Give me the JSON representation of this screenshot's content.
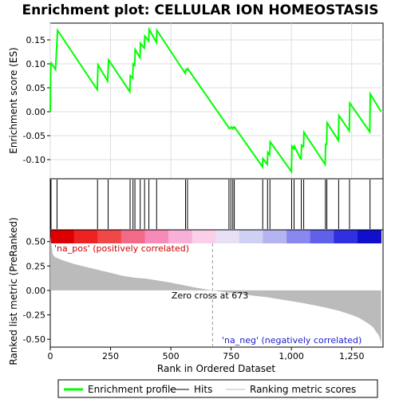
{
  "chart_data": {
    "type": "line",
    "title": "Enrichment plot: CELLULAR ION HOMEOSTASIS",
    "xlabel": "Rank in Ordered Dataset",
    "top_ylabel": "Enrichment score (ES)",
    "bottom_ylabel": "Ranked list metric (PreRanked)",
    "xlim": [
      0,
      1380
    ],
    "top_ylim": [
      -0.14,
      0.185
    ],
    "bottom_ylim": [
      -0.58,
      0.62
    ],
    "x_ticks": [
      0,
      250,
      500,
      750,
      1000,
      1250
    ],
    "x_tick_labels": [
      "0",
      "250",
      "500",
      "750",
      "1,000",
      "1,250"
    ],
    "top_y_ticks": [
      -0.1,
      -0.05,
      0.0,
      0.05,
      0.1,
      0.15
    ],
    "top_y_tick_labels": [
      "-0.10",
      "-0.05",
      "0.00",
      "0.05",
      "0.10",
      "0.15"
    ],
    "bottom_y_ticks": [
      -0.5,
      -0.25,
      0.0,
      0.25,
      0.5
    ],
    "bottom_y_tick_labels": [
      "-0.50",
      "-0.25",
      "0.00",
      "0.25",
      "0.50"
    ],
    "es_series": {
      "name": "Enrichment profile",
      "color": "#00ff00",
      "x": [
        0,
        2,
        4,
        22,
        30,
        195,
        198,
        238,
        242,
        330,
        332,
        342,
        344,
        350,
        352,
        372,
        374,
        390,
        392,
        408,
        410,
        440,
        442,
        560,
        562,
        568,
        570,
        740,
        742,
        748,
        750,
        756,
        758,
        762,
        764,
        880,
        882,
        900,
        902,
        910,
        912,
        1000,
        1002,
        1010,
        1012,
        1040,
        1042,
        1050,
        1052,
        1140,
        1142,
        1146,
        1148,
        1195,
        1197,
        1240,
        1242,
        1325,
        1327,
        1372
      ],
      "y": [
        0.0,
        0.1,
        0.102,
        0.088,
        0.17,
        0.046,
        0.098,
        0.064,
        0.108,
        0.042,
        0.075,
        0.07,
        0.1,
        0.097,
        0.13,
        0.113,
        0.143,
        0.133,
        0.158,
        0.148,
        0.172,
        0.145,
        0.17,
        0.08,
        0.088,
        0.087,
        0.09,
        -0.033,
        -0.035,
        -0.034,
        -0.032,
        -0.035,
        -0.033,
        -0.034,
        -0.032,
        -0.115,
        -0.098,
        -0.11,
        -0.085,
        -0.09,
        -0.063,
        -0.125,
        -0.072,
        -0.077,
        -0.072,
        -0.1,
        -0.07,
        -0.073,
        -0.043,
        -0.11,
        -0.068,
        -0.068,
        -0.023,
        -0.06,
        -0.008,
        -0.04,
        0.018,
        -0.042,
        0.037,
        0.0
      ]
    },
    "hits_x": [
      3,
      28,
      196,
      240,
      331,
      343,
      351,
      373,
      391,
      409,
      441,
      561,
      569,
      741,
      749,
      757,
      763,
      881,
      901,
      911,
      1001,
      1011,
      1041,
      1051,
      1141,
      1147,
      1196,
      1241,
      1326
    ],
    "metric_samples": {
      "x": [
        0,
        10,
        20,
        50,
        100,
        150,
        200,
        250,
        300,
        350,
        400,
        450,
        500,
        550,
        600,
        650,
        673,
        700,
        750,
        800,
        850,
        900,
        950,
        1000,
        1050,
        1100,
        1150,
        1200,
        1250,
        1280,
        1300,
        1320,
        1340,
        1350,
        1360,
        1365,
        1370,
        1372
      ],
      "y": [
        0.55,
        0.37,
        0.34,
        0.31,
        0.27,
        0.24,
        0.21,
        0.18,
        0.15,
        0.13,
        0.12,
        0.1,
        0.08,
        0.055,
        0.03,
        0.01,
        0.0,
        -0.01,
        -0.025,
        -0.04,
        -0.055,
        -0.07,
        -0.09,
        -0.11,
        -0.13,
        -0.155,
        -0.18,
        -0.21,
        -0.25,
        -0.28,
        -0.31,
        -0.34,
        -0.38,
        -0.42,
        -0.45,
        -0.48,
        -0.52,
        -0.56
      ]
    },
    "zero_cross_x": 673,
    "zero_cross_label": "Zero cross at 673",
    "pos_label": "'na_pos' (positively correlated)",
    "neg_label": "'na_neg' (negatively correlated)",
    "colorbar_stops": [
      "#dd0000",
      "#ee2222",
      "#f04848",
      "#f26a88",
      "#f68ab8",
      "#f8b0d8",
      "#fad0e8",
      "#e8e0f4",
      "#d0d0f4",
      "#b4b4f0",
      "#8888ee",
      "#6060e8",
      "#3030e0",
      "#1010cc"
    ],
    "legend": [
      {
        "label": "Enrichment profile",
        "color": "#00ff00"
      },
      {
        "label": "Hits",
        "color": "#000000"
      },
      {
        "label": "Ranking metric scores",
        "color": "#bbbbbb"
      }
    ]
  }
}
